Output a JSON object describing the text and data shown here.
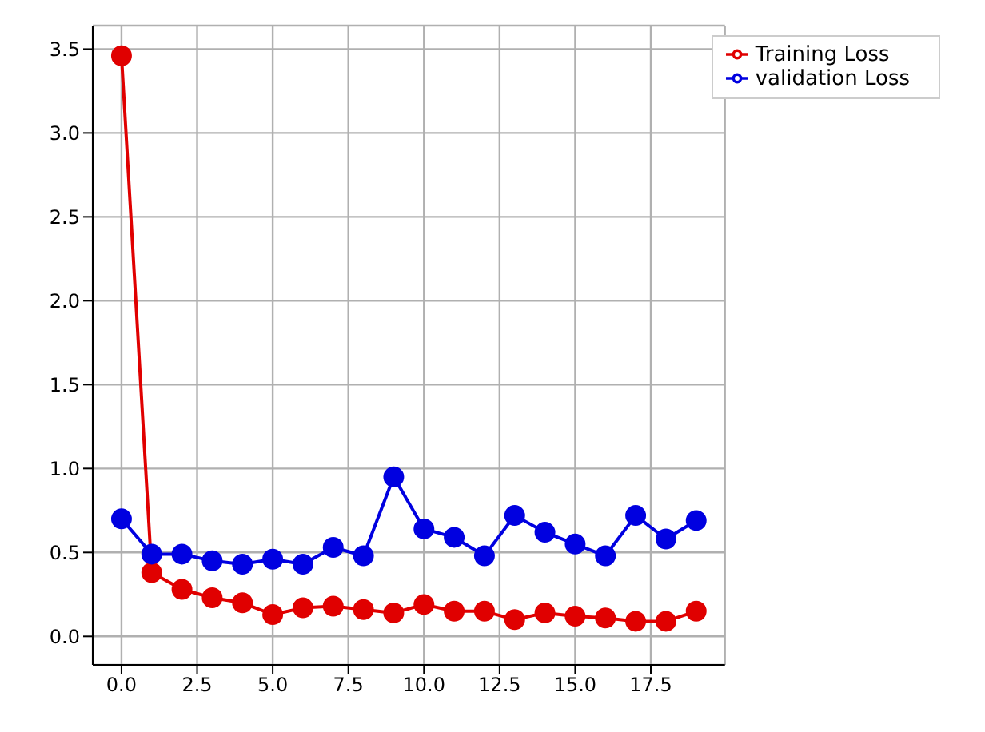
{
  "chart_data": {
    "type": "line",
    "x": [
      0,
      1,
      2,
      3,
      4,
      5,
      6,
      7,
      8,
      9,
      10,
      11,
      12,
      13,
      14,
      15,
      16,
      17,
      18,
      19
    ],
    "series": [
      {
        "name": "Training Loss",
        "color": "#e00000",
        "values": [
          3.46,
          0.38,
          0.28,
          0.23,
          0.2,
          0.13,
          0.17,
          0.18,
          0.16,
          0.14,
          0.19,
          0.15,
          0.15,
          0.1,
          0.14,
          0.12,
          0.11,
          0.09,
          0.09,
          0.15
        ]
      },
      {
        "name": "validation Loss",
        "color": "#0000e0",
        "values": [
          0.7,
          0.49,
          0.49,
          0.45,
          0.43,
          0.46,
          0.43,
          0.53,
          0.48,
          0.95,
          0.64,
          0.59,
          0.48,
          0.72,
          0.62,
          0.55,
          0.48,
          0.72,
          0.58,
          0.69
        ]
      }
    ],
    "xlim": [
      -0.95,
      19.95
    ],
    "ylim": [
      -0.17,
      3.64
    ],
    "xticks": [
      {
        "value": 0,
        "label": "0.0"
      },
      {
        "value": 2.5,
        "label": "2.5"
      },
      {
        "value": 5,
        "label": "5.0"
      },
      {
        "value": 7.5,
        "label": "7.5"
      },
      {
        "value": 10,
        "label": "10.0"
      },
      {
        "value": 12.5,
        "label": "12.5"
      },
      {
        "value": 15,
        "label": "15.0"
      },
      {
        "value": 17.5,
        "label": "17.5"
      }
    ],
    "yticks": [
      {
        "value": 0,
        "label": "0.0"
      },
      {
        "value": 0.5,
        "label": "0.5"
      },
      {
        "value": 1,
        "label": "1.0"
      },
      {
        "value": 1.5,
        "label": "1.5"
      },
      {
        "value": 2,
        "label": "2.0"
      },
      {
        "value": 2.5,
        "label": "2.5"
      },
      {
        "value": 3,
        "label": "3.0"
      },
      {
        "value": 3.5,
        "label": "3.5"
      }
    ],
    "grid": true,
    "legend": "top right",
    "marker": "circle",
    "line_style": "solid"
  }
}
